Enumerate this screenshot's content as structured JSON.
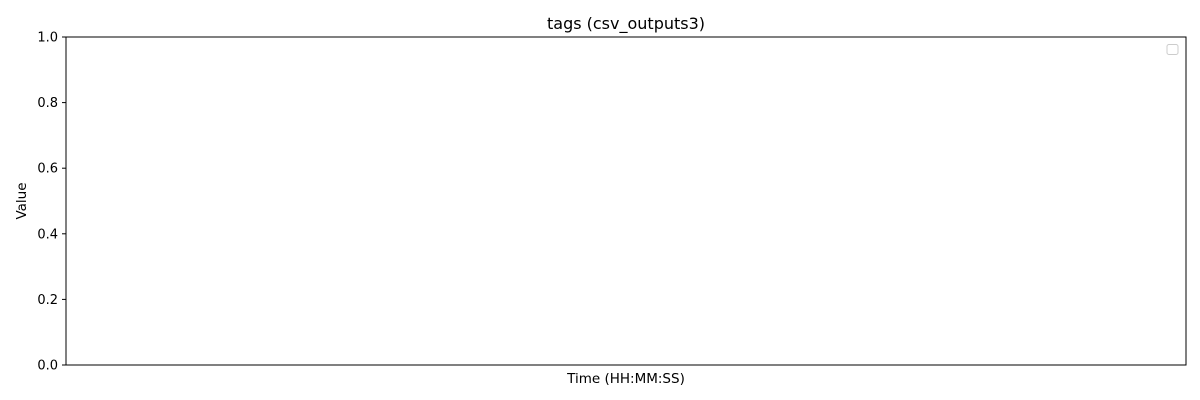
{
  "chart_data": {
    "type": "line",
    "title": "tags (csv_outputs3)",
    "xlabel": "Time (HH:MM:SS)",
    "ylabel": "Value",
    "ylim": [
      0,
      1
    ],
    "yticks": [
      "0.0",
      "0.2",
      "0.4",
      "0.6",
      "0.8",
      "1.0"
    ],
    "xticks": [],
    "series": [],
    "legend": {
      "placement": "top-right",
      "entries": []
    },
    "grid": false
  }
}
